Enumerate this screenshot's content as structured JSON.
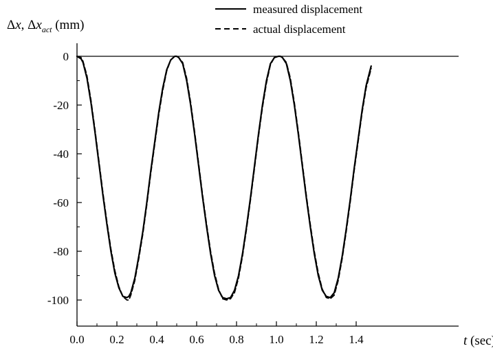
{
  "chart_data": {
    "type": "line",
    "y_axis_title": {
      "prefix": "Δ",
      "var1": "x",
      "sep": ", Δ",
      "var2": "x",
      "subscript": "act",
      "unit": " (mm)"
    },
    "x_axis_title": {
      "var": "t",
      "unit": " (sec)"
    },
    "xlim": [
      0.0,
      1.5
    ],
    "ylim": [
      -110,
      5
    ],
    "x_ticks": [
      "0.0",
      "0.2",
      "0.4",
      "0.6",
      "0.8",
      "1.0",
      "1.2",
      "1.4"
    ],
    "y_ticks": [
      "0",
      "-20",
      "-40",
      "-60",
      "-80",
      "-100"
    ],
    "reference_line_y": 0,
    "legend_position": "top-right",
    "series": [
      {
        "name": "measured displacement",
        "line_style": "solid",
        "color": "#000000",
        "x": [
          0.0,
          0.02,
          0.03,
          0.05,
          0.07,
          0.09,
          0.11,
          0.13,
          0.15,
          0.17,
          0.19,
          0.21,
          0.23,
          0.25,
          0.26,
          0.27,
          0.29,
          0.31,
          0.33,
          0.35,
          0.37,
          0.39,
          0.41,
          0.43,
          0.45,
          0.47,
          0.49,
          0.5,
          0.51,
          0.53,
          0.55,
          0.57,
          0.59,
          0.61,
          0.63,
          0.65,
          0.67,
          0.69,
          0.71,
          0.73,
          0.75,
          0.77,
          0.79,
          0.81,
          0.83,
          0.85,
          0.87,
          0.89,
          0.91,
          0.93,
          0.95,
          0.97,
          0.99,
          1.01,
          1.02,
          1.03,
          1.05,
          1.07,
          1.09,
          1.11,
          1.13,
          1.15,
          1.17,
          1.19,
          1.21,
          1.23,
          1.25,
          1.27,
          1.29,
          1.31,
          1.33,
          1.35,
          1.37,
          1.39,
          1.41,
          1.43,
          1.45,
          1.475
        ],
        "y": [
          0,
          -1,
          -2.5,
          -9,
          -19,
          -31,
          -44,
          -57,
          -69,
          -80,
          -89,
          -95,
          -98.5,
          -99,
          -98.5,
          -97,
          -91,
          -82,
          -72,
          -60,
          -47,
          -35,
          -23,
          -13,
          -5.5,
          -1.5,
          0,
          0,
          -0.5,
          -3,
          -10,
          -20,
          -32,
          -45,
          -58,
          -70,
          -81,
          -90,
          -96,
          -99,
          -99.5,
          -99,
          -96,
          -90,
          -81,
          -70,
          -58,
          -45,
          -32,
          -20,
          -10,
          -3,
          -0.5,
          0,
          0,
          -0.5,
          -3,
          -10,
          -20,
          -32,
          -45,
          -58,
          -70,
          -81,
          -90,
          -96,
          -98.5,
          -99,
          -97,
          -91,
          -82,
          -71,
          -59,
          -46,
          -34,
          -22,
          -12,
          -4
        ]
      },
      {
        "name": "actual displacement",
        "line_style": "dashed",
        "color": "#000000",
        "x": [
          0.0,
          0.02,
          0.03,
          0.05,
          0.07,
          0.09,
          0.11,
          0.13,
          0.15,
          0.17,
          0.19,
          0.21,
          0.23,
          0.25,
          0.26,
          0.27,
          0.29,
          0.31,
          0.33,
          0.35,
          0.37,
          0.39,
          0.41,
          0.43,
          0.45,
          0.47,
          0.49,
          0.5,
          0.51,
          0.53,
          0.55,
          0.57,
          0.59,
          0.61,
          0.63,
          0.65,
          0.67,
          0.69,
          0.71,
          0.73,
          0.75,
          0.77,
          0.79,
          0.81,
          0.83,
          0.85,
          0.87,
          0.89,
          0.91,
          0.93,
          0.95,
          0.97,
          0.99,
          1.01,
          1.02,
          1.03,
          1.05,
          1.07,
          1.09,
          1.11,
          1.13,
          1.15,
          1.17,
          1.19,
          1.21,
          1.23,
          1.25,
          1.27,
          1.29,
          1.31,
          1.33,
          1.35,
          1.37,
          1.39,
          1.41,
          1.43,
          1.45,
          1.475
        ],
        "y": [
          0,
          -0.5,
          -2,
          -8,
          -18,
          -30,
          -43,
          -56,
          -68,
          -79,
          -88,
          -94.5,
          -98.5,
          -100,
          -100,
          -98,
          -92,
          -83,
          -73,
          -61,
          -48,
          -36,
          -24,
          -14,
          -6,
          -1.5,
          0,
          0,
          -0.5,
          -2.5,
          -9,
          -19,
          -31,
          -44,
          -57,
          -69,
          -80,
          -89,
          -95.5,
          -99.5,
          -100,
          -99.5,
          -97,
          -91,
          -82,
          -71,
          -59,
          -46,
          -33,
          -21,
          -11,
          -3.5,
          -0.5,
          0,
          0,
          -0.5,
          -2.5,
          -9,
          -19,
          -31,
          -44,
          -57,
          -69,
          -80,
          -89,
          -95.5,
          -99,
          -99.5,
          -98,
          -92,
          -83,
          -72,
          -60,
          -47,
          -35,
          -23,
          -13,
          -5
        ]
      }
    ]
  }
}
